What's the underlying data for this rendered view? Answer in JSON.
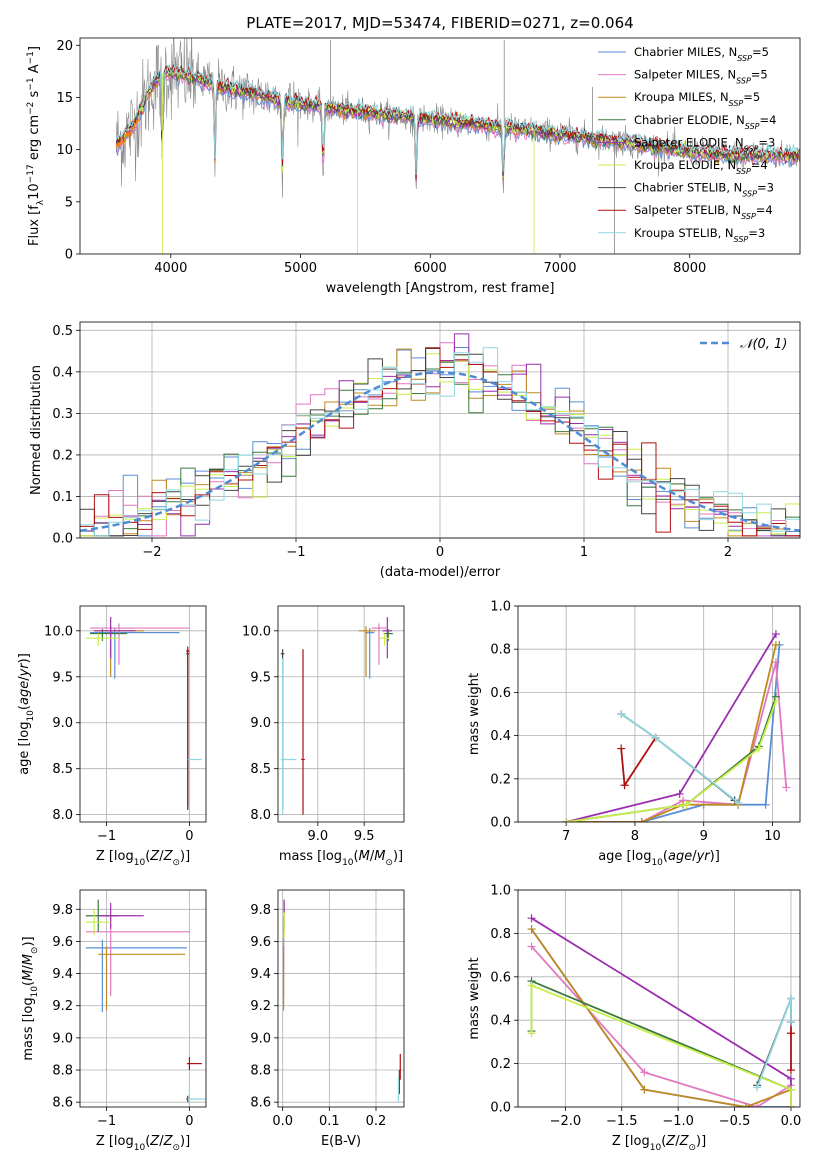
{
  "figure": {
    "title": "PLATE=2017, MJD=53474, FIBERID=0271, z=0.064"
  },
  "colors": {
    "Chabrier MILES": "#5a8fd8",
    "Salpeter MILES": "#e377c2",
    "Kroupa MILES": "#c08a20",
    "Chabrier ELODIE": "#3c7a3c",
    "Salpeter ELODIE": "#9b2fae",
    "Kroupa ELODIE": "#c8ef4a",
    "Chabrier STELIB": "#444444",
    "Salpeter STELIB": "#b01010",
    "Kroupa STELIB": "#8fd8e0",
    "data": "#888888",
    "orange": "#ff7f0e",
    "normal": "#4f8cd6"
  },
  "chart_data": [
    {
      "id": "spectrum",
      "type": "line",
      "xlabel": "wavelength [Angstrom, rest frame]",
      "ylabel": "Flux [f_λ 10^-17 erg cm^-2 s^-1 A^-1]",
      "xlim": [
        3300,
        8850
      ],
      "ylim": [
        0,
        20.7
      ],
      "xticks": [
        "4000",
        "5000",
        "6000",
        "7000",
        "8000"
      ],
      "yticks": [
        "0",
        "5",
        "10",
        "15",
        "20"
      ],
      "legend_position": "upper right",
      "legend": [
        {
          "label": "Chabrier MILES, N",
          "sub": "SSP",
          "suffix": "=5"
        },
        {
          "label": "Salpeter MILES, N",
          "sub": "SSP",
          "suffix": "=5"
        },
        {
          "label": "Kroupa MILES, N",
          "sub": "SSP",
          "suffix": "=5"
        },
        {
          "label": "Chabrier ELODIE, N",
          "sub": "SSP",
          "suffix": "=4"
        },
        {
          "label": "Salpeter ELODIE, N",
          "sub": "SSP",
          "suffix": "=3"
        },
        {
          "label": "Kroupa ELODIE, N",
          "sub": "SSP",
          "suffix": "=4"
        },
        {
          "label": "Chabrier STELIB, N",
          "sub": "SSP",
          "suffix": "=3"
        },
        {
          "label": "Salpeter STELIB, N",
          "sub": "SSP",
          "suffix": "=4"
        },
        {
          "label": "Kroupa STELIB, N",
          "sub": "SSP",
          "suffix": "=3"
        }
      ],
      "continuum": [
        [
          3580,
          10.5
        ],
        [
          3700,
          12
        ],
        [
          3850,
          16
        ],
        [
          3950,
          17.5
        ],
        [
          4100,
          17.2
        ],
        [
          4400,
          16
        ],
        [
          4700,
          15.2
        ],
        [
          4900,
          14.6
        ],
        [
          5200,
          14
        ],
        [
          5600,
          13.4
        ],
        [
          6000,
          12.9
        ],
        [
          6500,
          12.2
        ],
        [
          7000,
          11.5
        ],
        [
          7500,
          10.7
        ],
        [
          8000,
          9.8
        ],
        [
          8300,
          9.5
        ],
        [
          8850,
          9.4
        ]
      ],
      "absorption_lines": [
        3934,
        4340,
        4861,
        5175,
        5890,
        6563
      ]
    },
    {
      "id": "residuals",
      "type": "line",
      "xlabel": "(data-model)/error",
      "ylabel": "Normed distribution",
      "xlim": [
        -2.5,
        2.5
      ],
      "ylim": [
        0,
        0.52
      ],
      "xticks": [
        "−2",
        "−1",
        "0",
        "1",
        "2"
      ],
      "yticks": [
        "0.0",
        "0.1",
        "0.2",
        "0.3",
        "0.4",
        "0.5"
      ],
      "legend": {
        "label": "𝒩(0, 1)"
      },
      "bin_width": 0.1
    },
    {
      "id": "age_vs_Z",
      "type": "scatter",
      "xlabel": "Z [log10(Z/Z⊙)]",
      "ylabel": "age [log10(age/yr)]",
      "xlim": [
        -1.32,
        0.2
      ],
      "ylim": [
        7.92,
        10.27
      ],
      "xticks": [
        "−1",
        "0"
      ],
      "yticks": [
        "8.0",
        "8.5",
        "9.0",
        "9.5",
        "10.0"
      ],
      "points": [
        {
          "model": "Chabrier MILES",
          "x": -0.9,
          "y": 9.98,
          "xerr": [
            0.3,
            0.78
          ],
          "yerr": [
            0.5,
            0.05
          ]
        },
        {
          "model": "Salpeter MILES",
          "x": -0.85,
          "y": 10.03,
          "xerr": [
            0.35,
            0.85
          ],
          "yerr": [
            0.4,
            0.05
          ]
        },
        {
          "model": "Kroupa MILES",
          "x": -0.95,
          "y": 10.0,
          "xerr": [
            0.2,
            0.4
          ],
          "yerr": [
            0.5,
            0.05
          ]
        },
        {
          "model": "Chabrier ELODIE",
          "x": -1.05,
          "y": 9.97,
          "xerr": [
            0.15,
            0.3
          ],
          "yerr": [
            0.08,
            0.05
          ]
        },
        {
          "model": "Salpeter ELODIE",
          "x": -0.95,
          "y": 10.0,
          "xerr": [
            0.2,
            0.3
          ],
          "yerr": [
            0.3,
            0.15
          ]
        },
        {
          "model": "Kroupa ELODIE",
          "x": -1.1,
          "y": 9.92,
          "xerr": [
            0.15,
            0.25
          ],
          "yerr": [
            0.08,
            0.05
          ]
        },
        {
          "model": "Chabrier STELIB",
          "x": -0.02,
          "y": 9.75,
          "xerr": [
            0.02,
            0.02
          ],
          "yerr": [
            1.7,
            0.05
          ]
        },
        {
          "model": "Salpeter STELIB",
          "x": -0.02,
          "y": 9.78,
          "xerr": [
            0.02,
            0.02
          ],
          "yerr": [
            1.7,
            0.05
          ]
        },
        {
          "model": "Kroupa STELIB",
          "x": 0.0,
          "y": 8.6,
          "xerr": [
            0.02,
            0.15
          ],
          "yerr": [
            0.6,
            1.1
          ]
        }
      ]
    },
    {
      "id": "age_vs_mass",
      "type": "scatter",
      "xlabel": "mass [log10(M/M⊙)]",
      "ylabel": "",
      "xlim": [
        8.57,
        9.93
      ],
      "ylim": [
        7.92,
        10.27
      ],
      "xticks": [
        "9.0",
        "9.5"
      ],
      "yticks": [
        "8.0",
        "8.5",
        "9.0",
        "9.5",
        "10.0"
      ],
      "points": [
        {
          "model": "Chabrier MILES",
          "x": 9.56,
          "y": 9.98,
          "xerr": [
            0.05,
            0.05
          ],
          "yerr": [
            0.5,
            0.05
          ]
        },
        {
          "model": "Salpeter MILES",
          "x": 9.66,
          "y": 10.03,
          "xerr": [
            0.08,
            0.08
          ],
          "yerr": [
            0.4,
            0.05
          ]
        },
        {
          "model": "Kroupa MILES",
          "x": 9.52,
          "y": 10.0,
          "xerr": [
            0.08,
            0.1
          ],
          "yerr": [
            0.5,
            0.05
          ]
        },
        {
          "model": "Chabrier ELODIE",
          "x": 9.76,
          "y": 9.97,
          "xerr": [
            0.05,
            0.05
          ],
          "yerr": [
            0.08,
            0.05
          ]
        },
        {
          "model": "Salpeter ELODIE",
          "x": 9.75,
          "y": 10.0,
          "xerr": [
            0.05,
            0.05
          ],
          "yerr": [
            0.3,
            0.15
          ]
        },
        {
          "model": "Kroupa ELODIE",
          "x": 9.72,
          "y": 9.92,
          "xerr": [
            0.05,
            0.05
          ],
          "yerr": [
            0.08,
            0.05
          ]
        },
        {
          "model": "Chabrier STELIB",
          "x": 8.62,
          "y": 9.75,
          "xerr": [
            0.02,
            0.02
          ],
          "yerr": [
            1.7,
            0.05
          ]
        },
        {
          "model": "Salpeter STELIB",
          "x": 8.84,
          "y": 8.6,
          "xerr": [
            0.02,
            0.02
          ],
          "yerr": [
            0.6,
            1.2
          ]
        },
        {
          "model": "Kroupa STELIB",
          "x": 8.62,
          "y": 8.6,
          "xerr": [
            0.02,
            0.15
          ],
          "yerr": [
            0.6,
            1.1
          ]
        }
      ]
    },
    {
      "id": "mass_weight_vs_age",
      "type": "line",
      "xlabel": "age [log10(age/yr)]",
      "ylabel": "mass weight",
      "xlim": [
        6.3,
        10.4
      ],
      "ylim": [
        0,
        1.0
      ],
      "xticks": [
        "7",
        "8",
        "9",
        "10"
      ],
      "yticks": [
        "0.0",
        "0.2",
        "0.4",
        "0.6",
        "0.8",
        "1.0"
      ],
      "series": [
        {
          "model": "Chabrier MILES",
          "x": [
            7.0,
            8.1,
            9.0,
            9.9,
            10.1
          ],
          "y": [
            0.0,
            0.0,
            0.08,
            0.08,
            0.82
          ]
        },
        {
          "model": "Salpeter MILES",
          "x": [
            7.0,
            8.1,
            8.7,
            9.5,
            10.05,
            10.2
          ],
          "y": [
            0.0,
            0.0,
            0.1,
            0.08,
            0.74,
            0.16
          ]
        },
        {
          "model": "Kroupa MILES",
          "x": [
            7.0,
            8.1,
            8.7,
            9.5,
            10.05
          ],
          "y": [
            0.0,
            0.0,
            0.08,
            0.08,
            0.82
          ]
        },
        {
          "model": "Chabrier ELODIE",
          "x": [
            7.0,
            8.75,
            9.8,
            10.05
          ],
          "y": [
            0.0,
            0.08,
            0.35,
            0.58
          ]
        },
        {
          "model": "Salpeter ELODIE",
          "x": [
            7.0,
            8.65,
            10.05
          ],
          "y": [
            0.0,
            0.13,
            0.87
          ]
        },
        {
          "model": "Kroupa ELODIE",
          "x": [
            7.0,
            8.75,
            9.8,
            10.05
          ],
          "y": [
            0.0,
            0.08,
            0.34,
            0.56
          ]
        },
        {
          "model": "Chabrier STELIB",
          "x": [
            7.8,
            8.3,
            9.45
          ],
          "y": [
            0.5,
            0.39,
            0.1
          ]
        },
        {
          "model": "Salpeter STELIB",
          "x": [
            7.8,
            7.85,
            8.3
          ],
          "y": [
            0.34,
            0.17,
            0.39
          ]
        },
        {
          "model": "Kroupa STELIB",
          "x": [
            7.8,
            8.3,
            9.5
          ],
          "y": [
            0.5,
            0.39,
            0.09
          ]
        }
      ]
    },
    {
      "id": "mass_vs_Z",
      "type": "scatter",
      "xlabel": "Z [log10(Z/Z⊙)]",
      "ylabel": "mass [log10(M/M⊙)]",
      "xlim": [
        -1.32,
        0.2
      ],
      "ylim": [
        8.57,
        9.92
      ],
      "xticks": [
        "−1",
        "0"
      ],
      "yticks": [
        "8.6",
        "8.8",
        "9.0",
        "9.2",
        "9.4",
        "9.6",
        "9.8"
      ],
      "points": [
        {
          "model": "Chabrier MILES",
          "x": -1.05,
          "y": 9.56,
          "xerr": [
            0.2,
            1.02
          ],
          "yerr": [
            0.4,
            0.05
          ]
        },
        {
          "model": "Salpeter MILES",
          "x": -0.95,
          "y": 9.66,
          "xerr": [
            0.3,
            0.95
          ],
          "yerr": [
            0.4,
            0.1
          ]
        },
        {
          "model": "Kroupa MILES",
          "x": -1.0,
          "y": 9.52,
          "xerr": [
            0.1,
            0.95
          ],
          "yerr": [
            0.35,
            0.05
          ]
        },
        {
          "model": "Chabrier ELODIE",
          "x": -1.1,
          "y": 9.76,
          "xerr": [
            0.15,
            0.25
          ],
          "yerr": [
            0.1,
            0.1
          ]
        },
        {
          "model": "Salpeter ELODIE",
          "x": -0.95,
          "y": 9.76,
          "xerr": [
            0.15,
            0.4
          ],
          "yerr": [
            0.08,
            0.08
          ]
        },
        {
          "model": "Kroupa ELODIE",
          "x": -1.15,
          "y": 9.72,
          "xerr": [
            0.1,
            0.2
          ],
          "yerr": [
            0.08,
            0.08
          ]
        },
        {
          "model": "Chabrier STELIB",
          "x": -0.02,
          "y": 8.62,
          "xerr": [
            0.02,
            0.02
          ],
          "yerr": [
            0.02,
            0.02
          ]
        },
        {
          "model": "Salpeter STELIB",
          "x": 0.0,
          "y": 8.84,
          "xerr": [
            0.03,
            0.15
          ],
          "yerr": [
            0.04,
            0.04
          ]
        },
        {
          "model": "Kroupa STELIB",
          "x": 0.0,
          "y": 8.62,
          "xerr": [
            0.02,
            0.2
          ],
          "yerr": [
            0.03,
            0.1
          ]
        }
      ]
    },
    {
      "id": "mass_vs_ebv",
      "type": "scatter",
      "xlabel": "E(B-V)",
      "ylabel": "",
      "xlim": [
        -0.01,
        0.26
      ],
      "ylim": [
        8.57,
        9.92
      ],
      "xticks": [
        "0.0",
        "0.1",
        "0.2"
      ],
      "yticks": [
        "8.6",
        "8.8",
        "9.0",
        "9.2",
        "9.4",
        "9.6",
        "9.8"
      ],
      "points": [
        {
          "model": "Chabrier MILES",
          "x": 0.002,
          "y": 9.56,
          "yerr": [
            0.2,
            0.05
          ]
        },
        {
          "model": "Salpeter MILES",
          "x": 0.002,
          "y": 9.66,
          "yerr": [
            0.4,
            0.1
          ]
        },
        {
          "model": "Kroupa MILES",
          "x": 0.002,
          "y": 9.52,
          "yerr": [
            0.35,
            0.05
          ]
        },
        {
          "model": "Chabrier ELODIE",
          "x": 0.003,
          "y": 9.76,
          "yerr": [
            0.1,
            0.08
          ]
        },
        {
          "model": "Salpeter ELODIE",
          "x": 0.003,
          "y": 9.82,
          "yerr": [
            0.04,
            0.04
          ]
        },
        {
          "model": "Kroupa ELODIE",
          "x": 0.003,
          "y": 9.72,
          "yerr": [
            0.1,
            0.06
          ]
        },
        {
          "model": "Chabrier STELIB",
          "x": 0.25,
          "y": 8.75,
          "yerr": [
            0.1,
            0.05
          ]
        },
        {
          "model": "Salpeter STELIB",
          "x": 0.252,
          "y": 8.8,
          "yerr": [
            0.06,
            0.1
          ]
        },
        {
          "model": "Kroupa STELIB",
          "x": 0.248,
          "y": 8.7,
          "yerr": [
            0.1,
            0.05
          ]
        }
      ]
    },
    {
      "id": "mass_weight_vs_Z",
      "type": "line",
      "xlabel": "Z [log10(Z/Z⊙)]",
      "ylabel": "mass weight",
      "xlim": [
        -2.42,
        0.08
      ],
      "ylim": [
        0,
        1.0
      ],
      "xticks": [
        "−2.0",
        "−1.5",
        "−1.0",
        "−0.5",
        "0.0"
      ],
      "yticks": [
        "0.0",
        "0.2",
        "0.4",
        "0.6",
        "0.8",
        "1.0"
      ],
      "series": [
        {
          "model": "Chabrier MILES",
          "x": [
            -2.3,
            -1.3,
            -0.4,
            0.0
          ],
          "y": [
            0.82,
            0.08,
            0.0,
            0.0
          ]
        },
        {
          "model": "Salpeter MILES",
          "x": [
            -2.3,
            -1.3,
            -0.3,
            0.0
          ],
          "y": [
            0.74,
            0.16,
            0.0,
            0.1
          ]
        },
        {
          "model": "Kroupa MILES",
          "x": [
            -2.3,
            -1.3,
            -0.4,
            0.0
          ],
          "y": [
            0.82,
            0.08,
            0.0,
            0.08
          ]
        },
        {
          "model": "Chabrier ELODIE",
          "x": [
            -2.3,
            -2.3,
            0.0,
            0.0
          ],
          "y": [
            0.35,
            0.58,
            0.08,
            0.0
          ]
        },
        {
          "model": "Salpeter ELODIE",
          "x": [
            -2.3,
            0.0,
            0.0
          ],
          "y": [
            0.87,
            0.13,
            0.0
          ]
        },
        {
          "model": "Kroupa ELODIE",
          "x": [
            -2.3,
            -2.3,
            0.0,
            0.0
          ],
          "y": [
            0.34,
            0.56,
            0.08,
            0.0
          ]
        },
        {
          "model": "Chabrier STELIB",
          "x": [
            -0.3,
            0.0,
            0.0
          ],
          "y": [
            0.1,
            0.5,
            0.39
          ]
        },
        {
          "model": "Salpeter STELIB",
          "x": [
            0.0,
            0.0,
            0.0
          ],
          "y": [
            0.39,
            0.34,
            0.17
          ]
        },
        {
          "model": "Kroupa STELIB",
          "x": [
            -0.3,
            0.0,
            0.0
          ],
          "y": [
            0.09,
            0.5,
            0.39
          ]
        }
      ]
    }
  ]
}
